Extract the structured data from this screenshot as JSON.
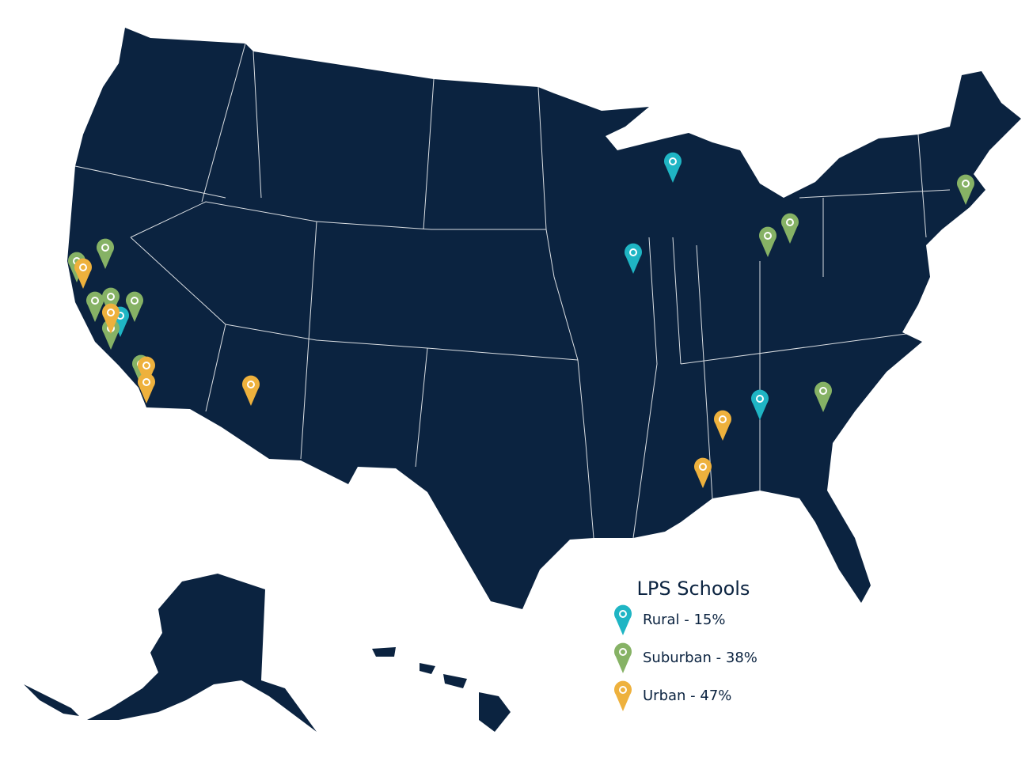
{
  "legend": {
    "title": "LPS Schools",
    "items": [
      {
        "label": "Rural - 15%",
        "color": "#1fb5c4"
      },
      {
        "label": "Suburban - 38%",
        "color": "#86b265"
      },
      {
        "label": "Urban - 47%",
        "color": "#eeb13d"
      }
    ]
  }
}
